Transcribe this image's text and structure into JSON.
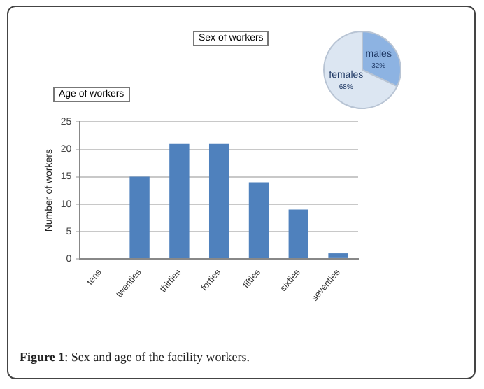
{
  "chart_data": [
    {
      "type": "pie",
      "title": "Sex of workers",
      "categories": [
        "males",
        "females"
      ],
      "values": [
        32,
        68
      ],
      "colors": [
        "#8db3e2",
        "#dce6f2"
      ],
      "value_labels": [
        "32%",
        "68%"
      ],
      "legend": false
    },
    {
      "type": "bar",
      "title": "Age of workers",
      "ylabel": "Number of workers",
      "categories": [
        "tens",
        "twenties",
        "thirties",
        "forties",
        "fifties",
        "sixties",
        "seventies"
      ],
      "values": [
        0,
        15,
        21,
        21,
        14,
        9,
        1
      ],
      "color": "#4f81bd",
      "ylim": [
        0,
        25
      ],
      "yticks": [
        0,
        5,
        10,
        15,
        20,
        25
      ],
      "grid": "y",
      "legend": false,
      "annotations": [
        "Figure 1: Sex and age of the facility workers."
      ]
    }
  ]
}
